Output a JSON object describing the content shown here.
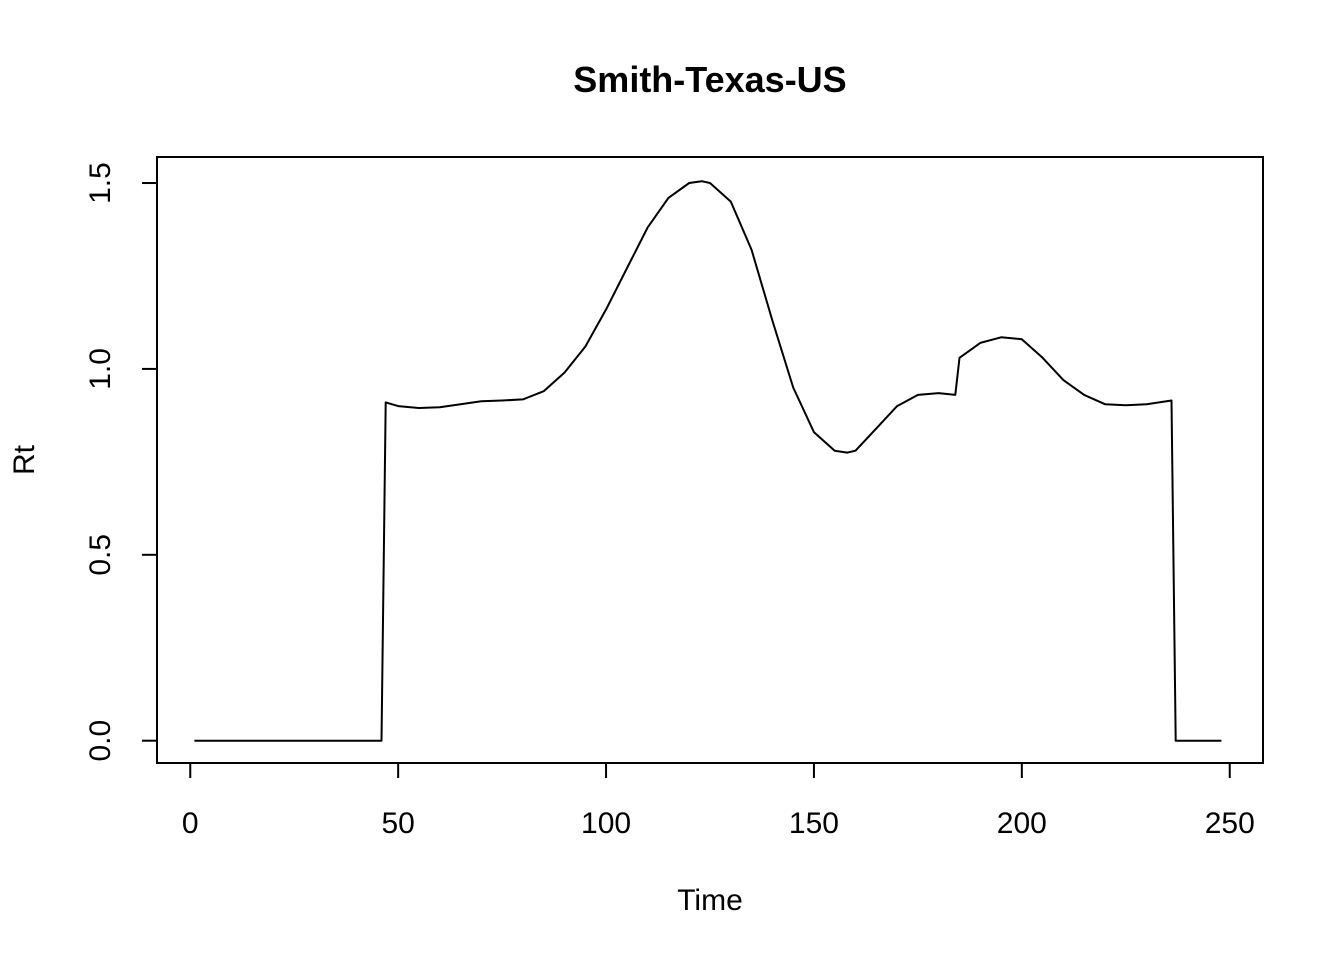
{
  "chart_data": {
    "type": "line",
    "title": "Smith-Texas-US",
    "xlabel": "Time",
    "ylabel": "Rt",
    "xlim": [
      -8,
      258
    ],
    "ylim": [
      -0.06,
      1.57
    ],
    "xticks": [
      0,
      50,
      100,
      150,
      200,
      250
    ],
    "yticks": [
      0.0,
      0.5,
      1.0,
      1.5
    ],
    "xtick_labels": [
      "0",
      "50",
      "100",
      "150",
      "200",
      "250"
    ],
    "ytick_labels": [
      "0.0",
      "0.5",
      "1.0",
      "1.5"
    ],
    "grid": false,
    "legend": "none",
    "line_color": "#000000",
    "series": [
      {
        "x": [
          1,
          46,
          47,
          50,
          55,
          60,
          65,
          70,
          75,
          80,
          85,
          90,
          95,
          100,
          105,
          110,
          115,
          120,
          123,
          125,
          130,
          135,
          140,
          145,
          150,
          155,
          158,
          160,
          165,
          170,
          175,
          180,
          184,
          185,
          190,
          195,
          200,
          205,
          210,
          215,
          220,
          225,
          230,
          236,
          237,
          248
        ],
        "y": [
          0,
          0,
          0.91,
          0.9,
          0.895,
          0.897,
          0.905,
          0.913,
          0.915,
          0.918,
          0.94,
          0.99,
          1.06,
          1.16,
          1.27,
          1.38,
          1.46,
          1.5,
          1.505,
          1.5,
          1.45,
          1.32,
          1.13,
          0.95,
          0.83,
          0.78,
          0.775,
          0.78,
          0.84,
          0.9,
          0.93,
          0.935,
          0.93,
          1.03,
          1.07,
          1.085,
          1.08,
          1.03,
          0.97,
          0.93,
          0.905,
          0.902,
          0.905,
          0.915,
          0,
          0
        ]
      }
    ]
  }
}
